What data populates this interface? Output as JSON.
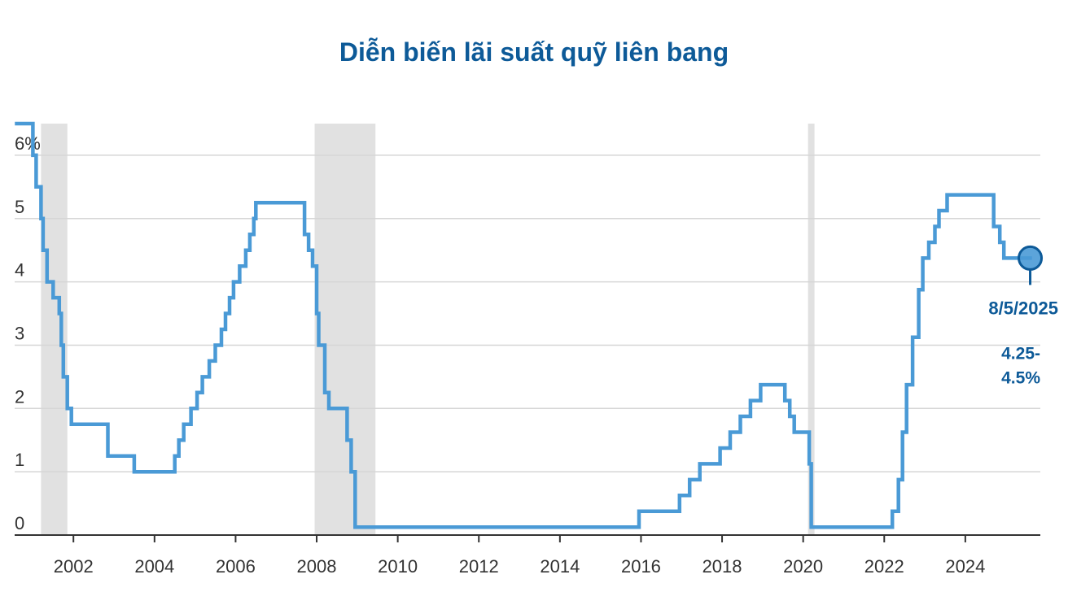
{
  "chart_data": {
    "type": "line",
    "step": true,
    "title": "Diễn biến lãi suất quỹ liên bang",
    "xlabel": "",
    "ylabel": "",
    "xlim": [
      2000.55,
      2025.85
    ],
    "ylim": [
      0,
      6.5
    ],
    "y_ticks": [
      {
        "value": 0,
        "label": "0"
      },
      {
        "value": 1,
        "label": "1"
      },
      {
        "value": 2,
        "label": "2"
      },
      {
        "value": 3,
        "label": "3"
      },
      {
        "value": 4,
        "label": "4"
      },
      {
        "value": 5,
        "label": "5"
      },
      {
        "value": 6,
        "label": "6%"
      }
    ],
    "x_ticks": [
      {
        "value": 2002,
        "label": "2002"
      },
      {
        "value": 2004,
        "label": "2004"
      },
      {
        "value": 2006,
        "label": "2006"
      },
      {
        "value": 2008,
        "label": "2008"
      },
      {
        "value": 2010,
        "label": "2010"
      },
      {
        "value": 2012,
        "label": "2012"
      },
      {
        "value": 2014,
        "label": "2014"
      },
      {
        "value": 2016,
        "label": "2016"
      },
      {
        "value": 2018,
        "label": "2018"
      },
      {
        "value": 2020,
        "label": "2020"
      },
      {
        "value": 2022,
        "label": "2022"
      },
      {
        "value": 2024,
        "label": "2024"
      }
    ],
    "grid": true,
    "recessions": [
      {
        "start": 2001.2,
        "end": 2001.85
      },
      {
        "start": 2007.95,
        "end": 2009.45
      },
      {
        "start": 2020.12,
        "end": 2020.28
      }
    ],
    "series": [
      {
        "color": "#4a9ad6",
        "points": [
          [
            2000.6,
            6.5
          ],
          [
            2001.0,
            6.0
          ],
          [
            2001.08,
            5.5
          ],
          [
            2001.2,
            5.0
          ],
          [
            2001.25,
            4.5
          ],
          [
            2001.35,
            4.0
          ],
          [
            2001.5,
            3.75
          ],
          [
            2001.65,
            3.5
          ],
          [
            2001.7,
            3.0
          ],
          [
            2001.75,
            2.5
          ],
          [
            2001.85,
            2.0
          ],
          [
            2001.95,
            1.75
          ],
          [
            2002.85,
            1.25
          ],
          [
            2003.5,
            1.0
          ],
          [
            2004.5,
            1.25
          ],
          [
            2004.6,
            1.5
          ],
          [
            2004.72,
            1.75
          ],
          [
            2004.9,
            2.0
          ],
          [
            2005.05,
            2.25
          ],
          [
            2005.18,
            2.5
          ],
          [
            2005.35,
            2.75
          ],
          [
            2005.5,
            3.0
          ],
          [
            2005.65,
            3.25
          ],
          [
            2005.75,
            3.5
          ],
          [
            2005.85,
            3.75
          ],
          [
            2005.95,
            4.0
          ],
          [
            2006.1,
            4.25
          ],
          [
            2006.25,
            4.5
          ],
          [
            2006.35,
            4.75
          ],
          [
            2006.45,
            5.0
          ],
          [
            2006.5,
            5.25
          ],
          [
            2007.7,
            4.75
          ],
          [
            2007.8,
            4.5
          ],
          [
            2007.9,
            4.25
          ],
          [
            2008.0,
            3.5
          ],
          [
            2008.05,
            3.0
          ],
          [
            2008.2,
            2.25
          ],
          [
            2008.3,
            2.0
          ],
          [
            2008.75,
            1.5
          ],
          [
            2008.85,
            1.0
          ],
          [
            2008.95,
            0.125
          ],
          [
            2015.95,
            0.375
          ],
          [
            2016.95,
            0.625
          ],
          [
            2017.2,
            0.875
          ],
          [
            2017.45,
            1.125
          ],
          [
            2017.95,
            1.375
          ],
          [
            2018.2,
            1.625
          ],
          [
            2018.45,
            1.875
          ],
          [
            2018.7,
            2.125
          ],
          [
            2018.95,
            2.375
          ],
          [
            2019.55,
            2.125
          ],
          [
            2019.67,
            1.875
          ],
          [
            2019.78,
            1.625
          ],
          [
            2020.15,
            1.125
          ],
          [
            2020.2,
            0.125
          ],
          [
            2022.2,
            0.375
          ],
          [
            2022.35,
            0.875
          ],
          [
            2022.45,
            1.625
          ],
          [
            2022.55,
            2.375
          ],
          [
            2022.7,
            3.125
          ],
          [
            2022.85,
            3.875
          ],
          [
            2022.95,
            4.375
          ],
          [
            2023.1,
            4.625
          ],
          [
            2023.25,
            4.875
          ],
          [
            2023.35,
            5.125
          ],
          [
            2023.55,
            5.375
          ],
          [
            2024.7,
            4.875
          ],
          [
            2024.85,
            4.625
          ],
          [
            2024.95,
            4.375
          ],
          [
            2025.6,
            4.375
          ]
        ]
      }
    ],
    "annotation": {
      "x": 2025.6,
      "y": 4.375,
      "date_label": "8/5/2025",
      "value_lines": [
        "4.25-",
        "4.5%"
      ]
    }
  },
  "colors": {
    "line": "#4a9ad6",
    "marker_stroke": "#0d5a98",
    "marker_fill": "#4a9ad6",
    "recession": "#e1e1e1",
    "grid": "#d6d6d6",
    "axis": "#333333",
    "title": "#0d5a98",
    "annotation": "#0d5a98"
  }
}
